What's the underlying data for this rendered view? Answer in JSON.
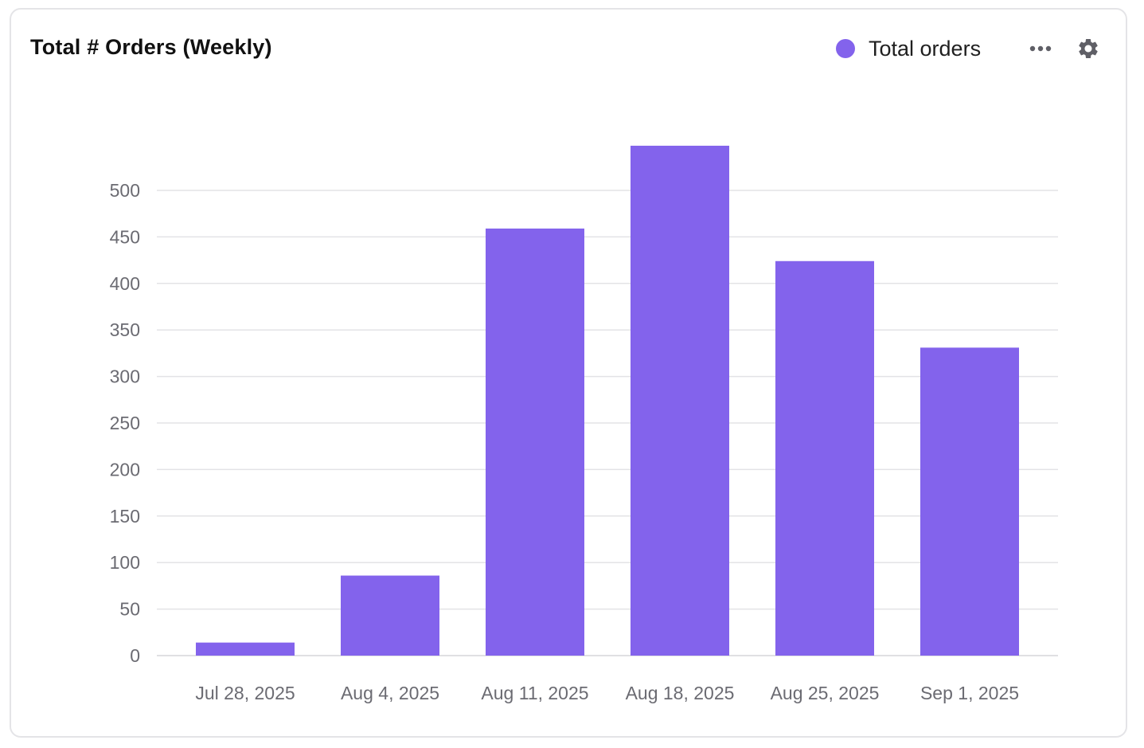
{
  "header": {
    "title": "Total # Orders (Weekly)",
    "more_icon": "more-horizontal-icon",
    "settings_icon": "gear-icon"
  },
  "colors": {
    "accent": "#8363EC",
    "grid": "#e3e3e6",
    "tick_text": "#6b6b72",
    "icon": "#5f5f66"
  },
  "chart_data": {
    "type": "bar",
    "title": "Total # Orders (Weekly)",
    "xlabel": "",
    "ylabel": "",
    "categories": [
      "Jul 28, 2025",
      "Aug 4, 2025",
      "Aug 11, 2025",
      "Aug 18, 2025",
      "Aug 25, 2025",
      "Sep 1, 2025"
    ],
    "series": [
      {
        "name": "Total orders",
        "color": "#8363EC",
        "values": [
          14,
          86,
          459,
          548,
          424,
          331
        ]
      }
    ],
    "yticks": [
      0,
      50,
      100,
      150,
      200,
      250,
      300,
      350,
      400,
      450,
      500
    ],
    "ylim": [
      0,
      548
    ],
    "grid": true,
    "legend_position": "top-right"
  }
}
